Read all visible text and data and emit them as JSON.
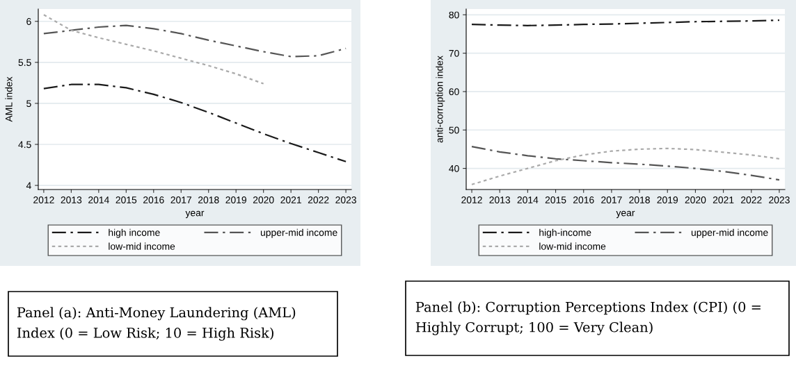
{
  "chart_data": [
    {
      "type": "line",
      "xlabel": "year",
      "ylabel": "AML index",
      "x": [
        2012,
        2013,
        2014,
        2015,
        2016,
        2017,
        2018,
        2019,
        2020,
        2021,
        2022,
        2023
      ],
      "xlim": [
        2011.8,
        2023.2
      ],
      "xticks": [
        2012,
        2013,
        2014,
        2015,
        2016,
        2017,
        2018,
        2019,
        2020,
        2021,
        2022,
        2023
      ],
      "ylim": [
        3.95,
        6.15
      ],
      "yticks": [
        4,
        4.5,
        5,
        5.5,
        6
      ],
      "grid": "y",
      "legend": "bottom",
      "series": [
        {
          "name": "high income",
          "color": "#1a1a1a",
          "line_style": "dashed",
          "values": [
            5.18,
            5.23,
            5.23,
            5.19,
            5.11,
            5.01,
            4.89,
            4.76,
            4.63,
            4.51,
            4.4,
            4.29
          ]
        },
        {
          "name": "upper-mid income",
          "color": "#555555",
          "line_style": "dashed",
          "values": [
            5.85,
            5.89,
            5.93,
            5.95,
            5.91,
            5.85,
            5.77,
            5.7,
            5.63,
            5.57,
            5.58,
            5.67
          ]
        },
        {
          "name": "low-mid income",
          "color": "#aaaaaa",
          "line_style": "dotted",
          "values": [
            6.08,
            5.89,
            5.8,
            5.72,
            5.64,
            5.55,
            5.46,
            5.36,
            5.24,
            null,
            null,
            null
          ]
        }
      ],
      "annotations": [
        "Panel (a): Anti-Money Laundering (AML) Index (0 = Low Risk; 10 = High Risk)"
      ]
    },
    {
      "type": "line",
      "xlabel": "year",
      "ylabel": "anti-corruption index",
      "x": [
        2012,
        2013,
        2014,
        2015,
        2016,
        2017,
        2018,
        2019,
        2020,
        2021,
        2022,
        2023
      ],
      "xlim": [
        2011.8,
        2023.2
      ],
      "xticks": [
        2012,
        2013,
        2014,
        2015,
        2016,
        2017,
        2018,
        2019,
        2020,
        2021,
        2022,
        2023
      ],
      "ylim": [
        34.5,
        81.5
      ],
      "yticks": [
        40,
        50,
        60,
        70,
        80
      ],
      "grid": "y",
      "legend": "bottom",
      "series": [
        {
          "name": "high-income",
          "color": "#1a1a1a",
          "line_style": "dashed",
          "values": [
            77.5,
            77.3,
            77.2,
            77.3,
            77.5,
            77.6,
            77.8,
            78.0,
            78.2,
            78.3,
            78.4,
            78.6
          ]
        },
        {
          "name": "upper-mid income",
          "color": "#555555",
          "line_style": "dashed",
          "values": [
            45.7,
            44.3,
            43.3,
            42.5,
            42.0,
            41.5,
            41.1,
            40.6,
            40.0,
            39.2,
            38.2,
            37.0
          ]
        },
        {
          "name": "low-mid income",
          "color": "#aaaaaa",
          "line_style": "dotted",
          "values": [
            35.8,
            38.0,
            40.0,
            42.0,
            43.5,
            44.5,
            45.0,
            45.2,
            44.9,
            44.2,
            43.5,
            42.5
          ]
        }
      ],
      "annotations": [
        "Panel (b): Corruption Perceptions Index (CPI) (0 = Highly Corrupt; 100 = Very Clean)"
      ]
    }
  ]
}
